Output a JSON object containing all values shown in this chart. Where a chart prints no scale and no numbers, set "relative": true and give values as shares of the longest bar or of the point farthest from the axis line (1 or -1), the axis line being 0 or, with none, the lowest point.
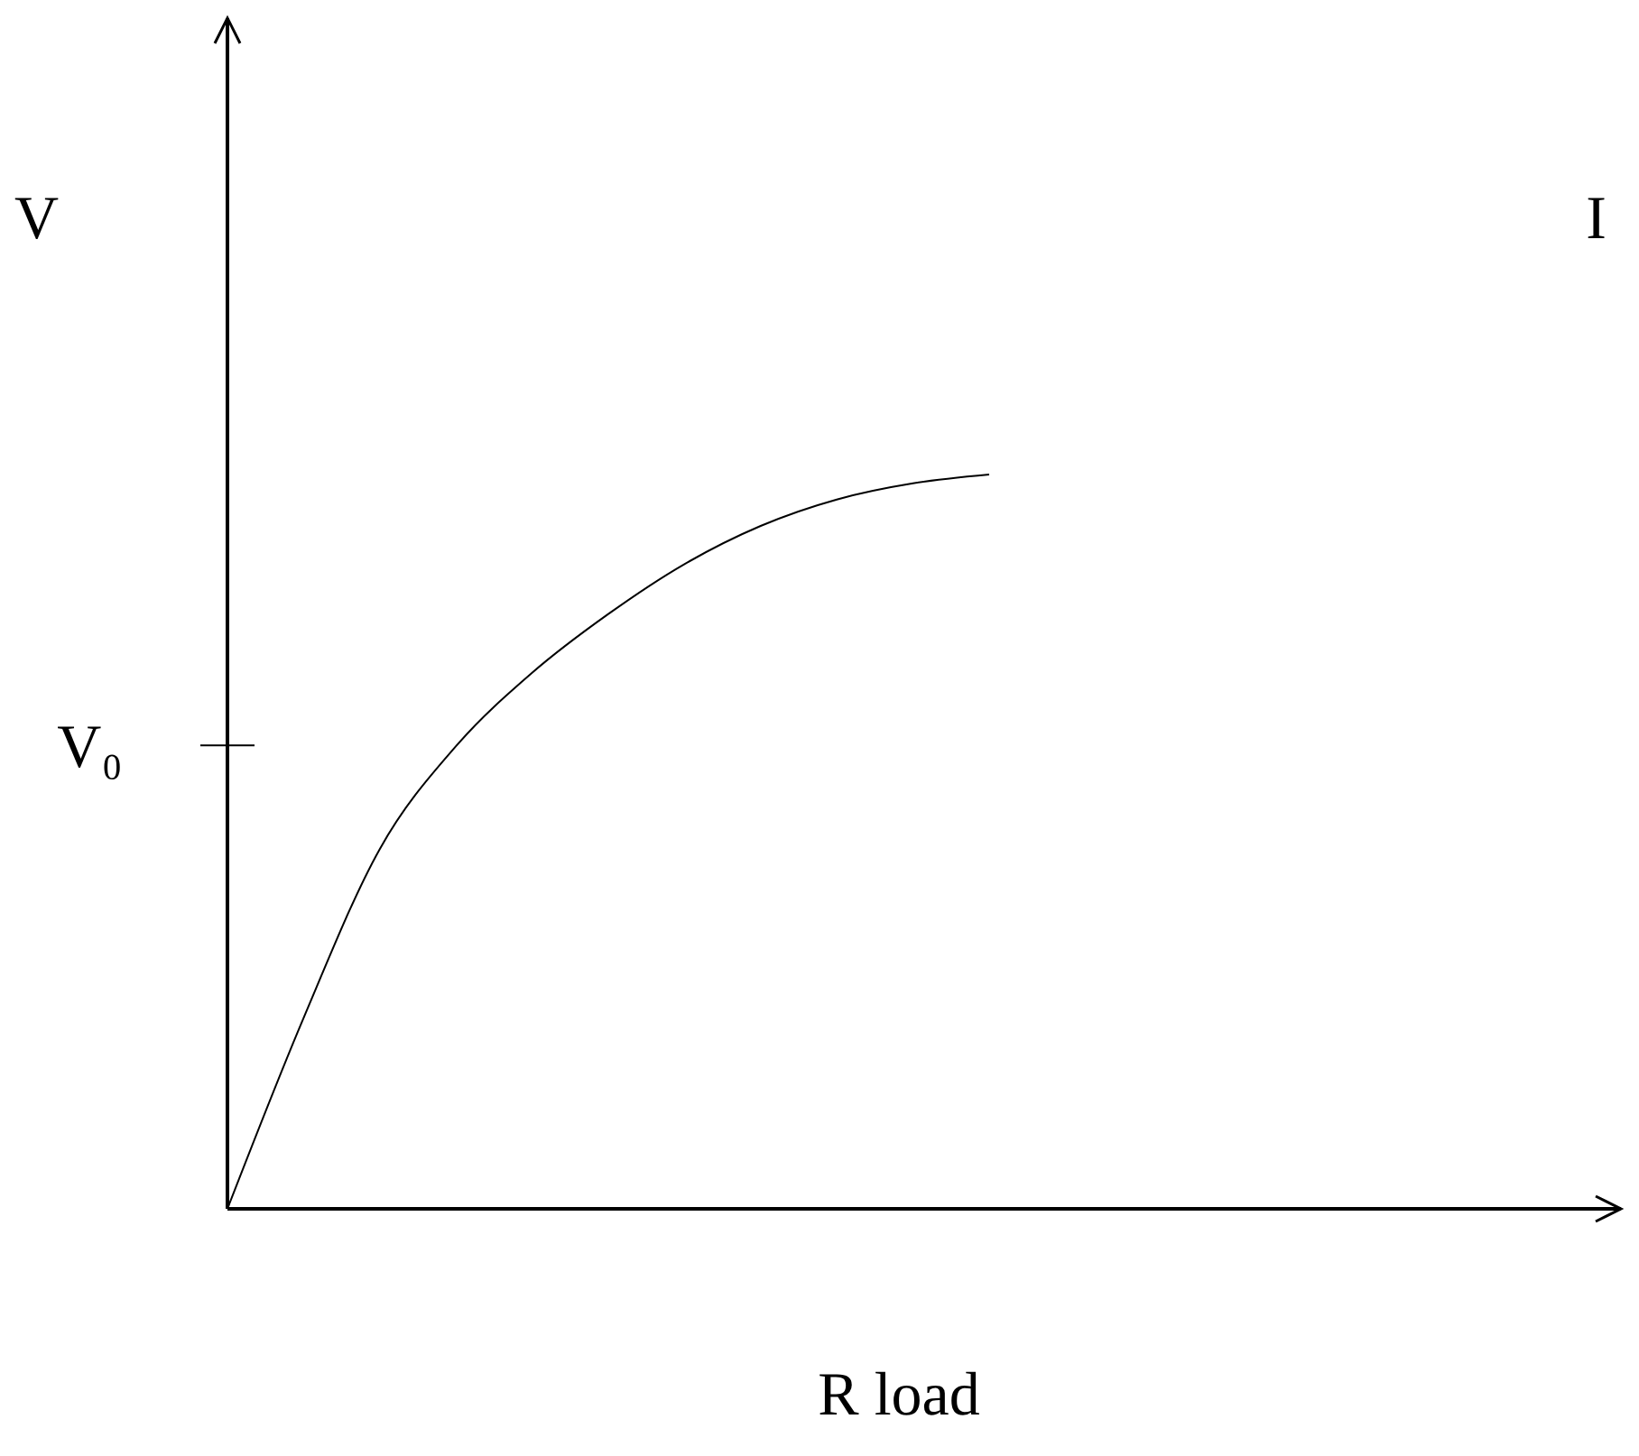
{
  "chart_data": {
    "type": "line",
    "relative": true,
    "xlabel": "R load",
    "ylabel": "V",
    "categories": [
      null,
      null,
      null,
      null,
      null,
      null,
      null,
      null,
      null,
      null,
      null,
      null,
      null,
      null,
      null,
      null,
      null,
      null,
      null
    ],
    "series": [
      {
        "color": "#000000",
        "values": [
          0,
          0.26,
          0.49,
          0.63,
          0.73,
          0.81,
          0.878,
          0.93,
          0.966,
          0.988,
          1,
          null,
          null,
          null,
          null,
          null,
          null,
          null,
          null
        ]
      }
    ],
    "ref_lines": [
      {
        "axis": "y",
        "value": 0.631,
        "label": "V₀"
      }
    ],
    "annotations": [
      "I"
    ]
  }
}
